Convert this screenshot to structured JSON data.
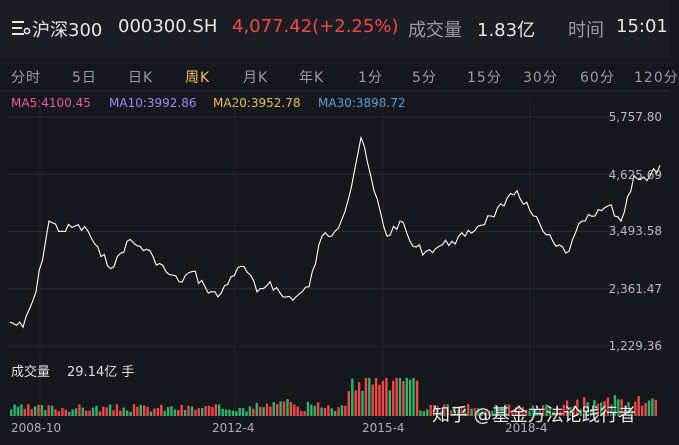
{
  "header": {
    "index_name": "沪深300",
    "code": "000300.SH",
    "price_change": "4,077.42(+2.25%)",
    "volume_label": "成交量",
    "volume_value": "1.83亿",
    "time_label": "时间",
    "time_value": "15:01"
  },
  "tabs": [
    {
      "label": "分时"
    },
    {
      "label": "5日"
    },
    {
      "label": "日K"
    },
    {
      "label": "周K",
      "active": true
    },
    {
      "label": "月K"
    },
    {
      "label": "年K"
    },
    {
      "label": "1分"
    },
    {
      "label": "5分"
    },
    {
      "label": "15分"
    },
    {
      "label": "30分"
    },
    {
      "label": "60分"
    },
    {
      "label": "120分"
    }
  ],
  "ma": {
    "ma5": "MA5:4100.45",
    "ma10": "MA10:3992.86",
    "ma20": "MA20:3952.78",
    "ma30": "MA30:3898.72"
  },
  "volume_row": {
    "label": "成交量",
    "value": "29.14亿 手"
  },
  "watermark": "知乎 @基金方法论践行者",
  "colors": {
    "up": "#f04848",
    "down": "#2db36b",
    "line": "#ffffff",
    "active_tab": "#f2c14e"
  },
  "chart_data": {
    "type": "line",
    "y_ticks": [
      "5,757.80",
      "4,625.69",
      "3,493.58",
      "2,361.47",
      "1,229.36"
    ],
    "ylim": [
      1229.36,
      5757.8
    ],
    "x_ticks": [
      "2008-10",
      "2012-4",
      "2015-4",
      "2018-4"
    ],
    "x": [
      "2008-10",
      "2009-01",
      "2009-04",
      "2009-07",
      "2009-08",
      "2009-11",
      "2010-01",
      "2010-04",
      "2010-07",
      "2010-11",
      "2011-04",
      "2011-07",
      "2011-10",
      "2012-01",
      "2012-04",
      "2012-07",
      "2012-09",
      "2012-12",
      "2013-02",
      "2013-06",
      "2013-09",
      "2014-01",
      "2014-06",
      "2014-09",
      "2014-12",
      "2015-01",
      "2015-03",
      "2015-06",
      "2015-07",
      "2015-09",
      "2015-12",
      "2016-01",
      "2016-03",
      "2016-06",
      "2016-12",
      "2017-03",
      "2017-06",
      "2017-09",
      "2017-12",
      "2018-01",
      "2018-03",
      "2018-06",
      "2018-10",
      "2019-01",
      "2019-04",
      "2019-08",
      "2019-12",
      "2020-03",
      "2020-07",
      "2020-09",
      "2020-12"
    ],
    "y": [
      1700,
      1600,
      2300,
      3700,
      3500,
      3600,
      3500,
      3000,
      2800,
      3300,
      3200,
      3000,
      2700,
      2500,
      2700,
      2400,
      2200,
      2600,
      2800,
      2300,
      2500,
      2200,
      2200,
      2400,
      3400,
      3500,
      4100,
      5350,
      4300,
      3400,
      3700,
      3200,
      3100,
      3200,
      3300,
      3400,
      3600,
      3800,
      4000,
      4300,
      3900,
      3500,
      3200,
      3100,
      3700,
      3800,
      4000,
      3700,
      4600,
      4500,
      4800
    ],
    "volume": {
      "label": "成交量",
      "value": "29.14亿 手"
    }
  }
}
